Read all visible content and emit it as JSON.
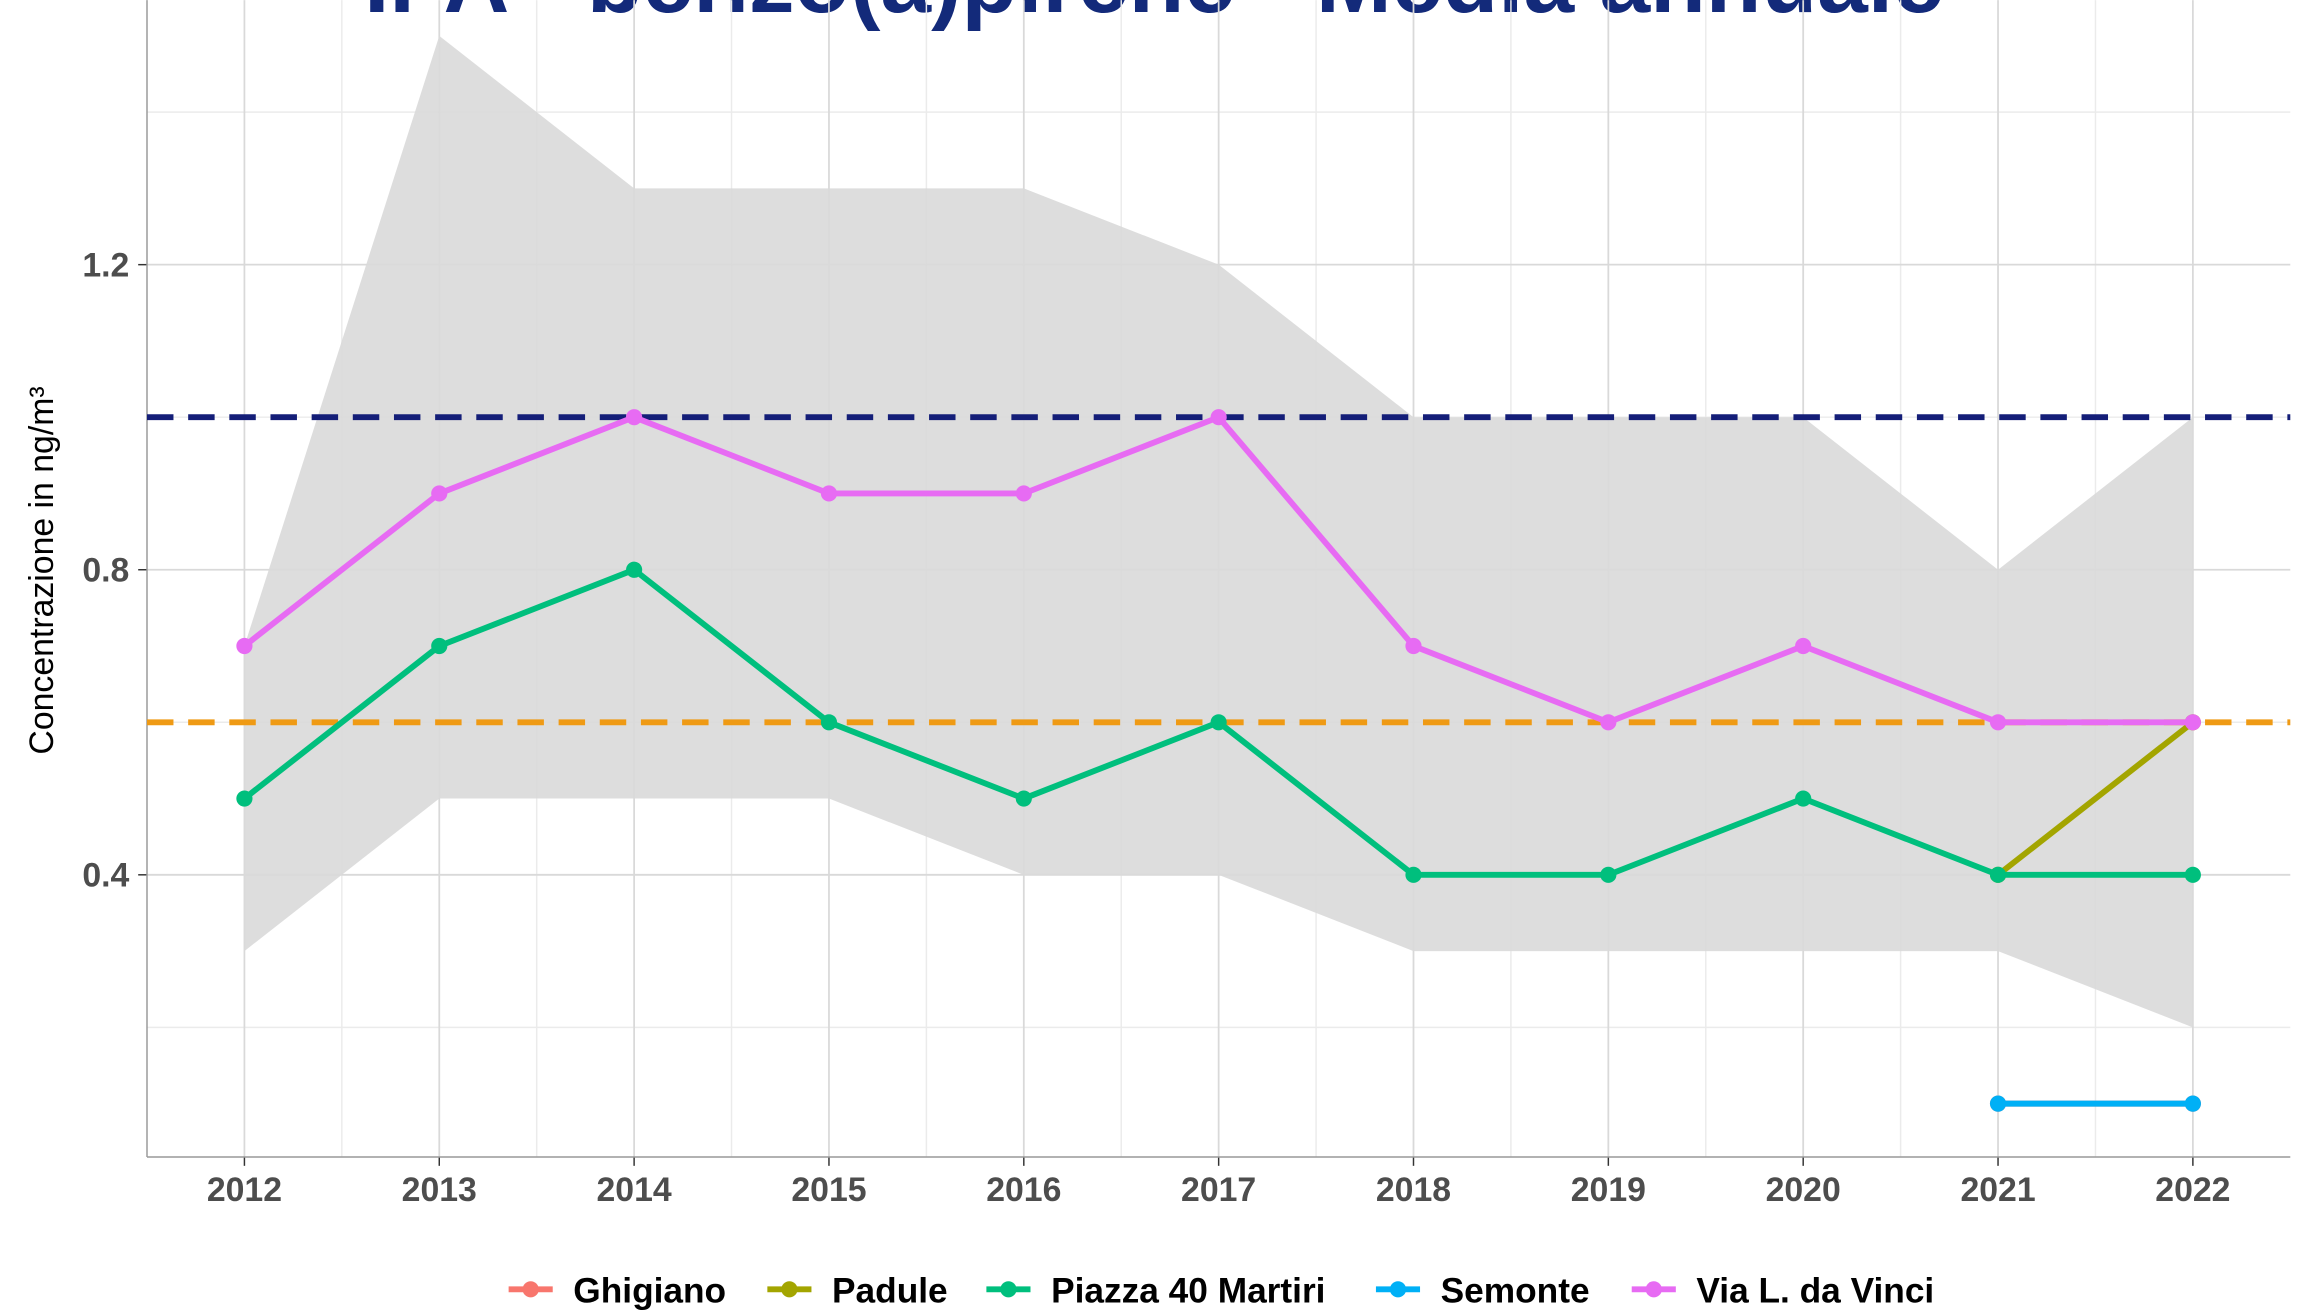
{
  "chart_data": {
    "type": "line",
    "title": "IPA - benzo(a)pirene - Media annuale",
    "y_label": "Concentrazione in ng/m³",
    "x": [
      2012,
      2013,
      2014,
      2015,
      2016,
      2017,
      2018,
      2019,
      2020,
      2021,
      2022
    ],
    "xlim": [
      2011.5,
      2022.5
    ],
    "xticks": [
      2012,
      2013,
      2014,
      2015,
      2016,
      2017,
      2018,
      2019,
      2020,
      2021,
      2022
    ],
    "xminor": [
      2012.5,
      2013.5,
      2014.5,
      2015.5,
      2016.5,
      2017.5,
      2018.5,
      2019.5,
      2020.5,
      2021.5
    ],
    "ylim": [
      0.03,
      1.57
    ],
    "yticks": [
      0.4,
      0.8,
      1.2
    ],
    "yminor": [
      0.2,
      0.6,
      1.0,
      1.4
    ],
    "grid": true,
    "legend": "bottom",
    "band": {
      "color": "#d9d9d9",
      "upper": [
        0.7,
        1.5,
        1.3,
        1.3,
        1.3,
        1.2,
        1.0,
        1.0,
        1.0,
        0.8,
        1.0
      ],
      "lower": [
        0.3,
        0.5,
        0.5,
        0.5,
        0.4,
        0.4,
        0.3,
        0.3,
        0.3,
        0.3,
        0.2
      ]
    },
    "hlines": [
      {
        "value": 1.0,
        "color": "#141e78"
      },
      {
        "value": 0.6,
        "color": "#ef9a14"
      }
    ],
    "series": [
      {
        "name": "Ghigiano",
        "color": "#F8766D",
        "values": [
          null,
          null,
          null,
          null,
          null,
          null,
          null,
          null,
          null,
          0.1,
          0.1
        ]
      },
      {
        "name": "Padule",
        "color": "#A3A500",
        "values": [
          null,
          null,
          null,
          null,
          null,
          null,
          null,
          null,
          null,
          0.4,
          0.6
        ]
      },
      {
        "name": "Piazza 40 Martiri",
        "color": "#00BF7D",
        "values": [
          0.5,
          0.7,
          0.8,
          0.6,
          0.5,
          0.6,
          0.4,
          0.4,
          0.5,
          0.4,
          0.4
        ]
      },
      {
        "name": "Semonte",
        "color": "#00B0F6",
        "values": [
          null,
          null,
          null,
          null,
          null,
          null,
          null,
          null,
          null,
          0.1,
          0.1
        ]
      },
      {
        "name": "Via L. da Vinci",
        "color": "#E76BF3",
        "values": [
          0.7,
          0.9,
          1.0,
          0.9,
          0.9,
          1.0,
          0.7,
          0.6,
          0.7,
          0.6,
          0.6
        ]
      }
    ]
  }
}
